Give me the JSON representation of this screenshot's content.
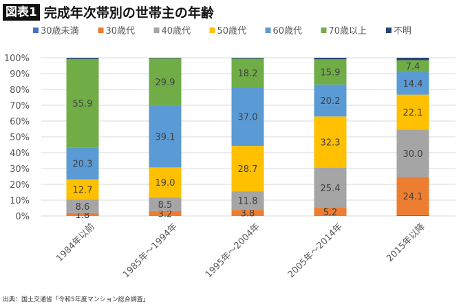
{
  "header": {
    "badge": "図表1",
    "title": "完成年次帯別の世帯主の年齢"
  },
  "source": "出典：国土交通省「令和5年度マンション総合調査」",
  "chart_data": {
    "type": "bar",
    "stacked": true,
    "title": "完成年次帯別の世帯主の年齢",
    "xlabel": "",
    "ylabel": "",
    "ylim": [
      0,
      100
    ],
    "yticks": [
      "0%",
      "10%",
      "20%",
      "30%",
      "40%",
      "50%",
      "60%",
      "70%",
      "80%",
      "90%",
      "100%"
    ],
    "grid": true,
    "legend_position": "top",
    "categories": [
      "1984年以前",
      "1985年～1994年",
      "1995年～2004年",
      "2005年～2014年",
      "2015年以降"
    ],
    "series": [
      {
        "name": "30歳未満",
        "color": "#4472C4",
        "values": [
          0,
          0,
          0,
          0,
          0.5
        ],
        "labels": [
          null,
          null,
          null,
          null,
          null
        ]
      },
      {
        "name": "30歳代",
        "color": "#ED7D31",
        "values": [
          1.8,
          3.2,
          3.8,
          5.2,
          24.1
        ],
        "labels": [
          "1.8",
          "3.2",
          "3.8",
          "5.2",
          "24.1"
        ]
      },
      {
        "name": "40歳代",
        "color": "#A5A5A5",
        "values": [
          8.6,
          8.5,
          11.8,
          25.4,
          30.0
        ],
        "labels": [
          "8.6",
          "8.5",
          "11.8",
          "25.4",
          "30.0"
        ]
      },
      {
        "name": "50歳代",
        "color": "#FFC000",
        "values": [
          12.7,
          19.0,
          28.7,
          32.3,
          22.1
        ],
        "labels": [
          "12.7",
          "19.0",
          "28.7",
          "32.3",
          "22.1"
        ]
      },
      {
        "name": "60歳代",
        "color": "#5B9BD5",
        "values": [
          20.3,
          39.1,
          37.0,
          20.2,
          14.4
        ],
        "labels": [
          "20.3",
          "39.1",
          "37.0",
          "20.2",
          "14.4"
        ]
      },
      {
        "name": "70歳以上",
        "color": "#70AD47",
        "values": [
          55.9,
          29.9,
          18.2,
          15.9,
          7.4
        ],
        "labels": [
          "55.9",
          "29.9",
          "18.2",
          "15.9",
          "7.4"
        ]
      },
      {
        "name": "不明",
        "color": "#264478",
        "values": [
          0.7,
          0.3,
          0.5,
          1.0,
          1.5
        ],
        "labels": [
          null,
          null,
          null,
          null,
          null
        ]
      }
    ]
  }
}
